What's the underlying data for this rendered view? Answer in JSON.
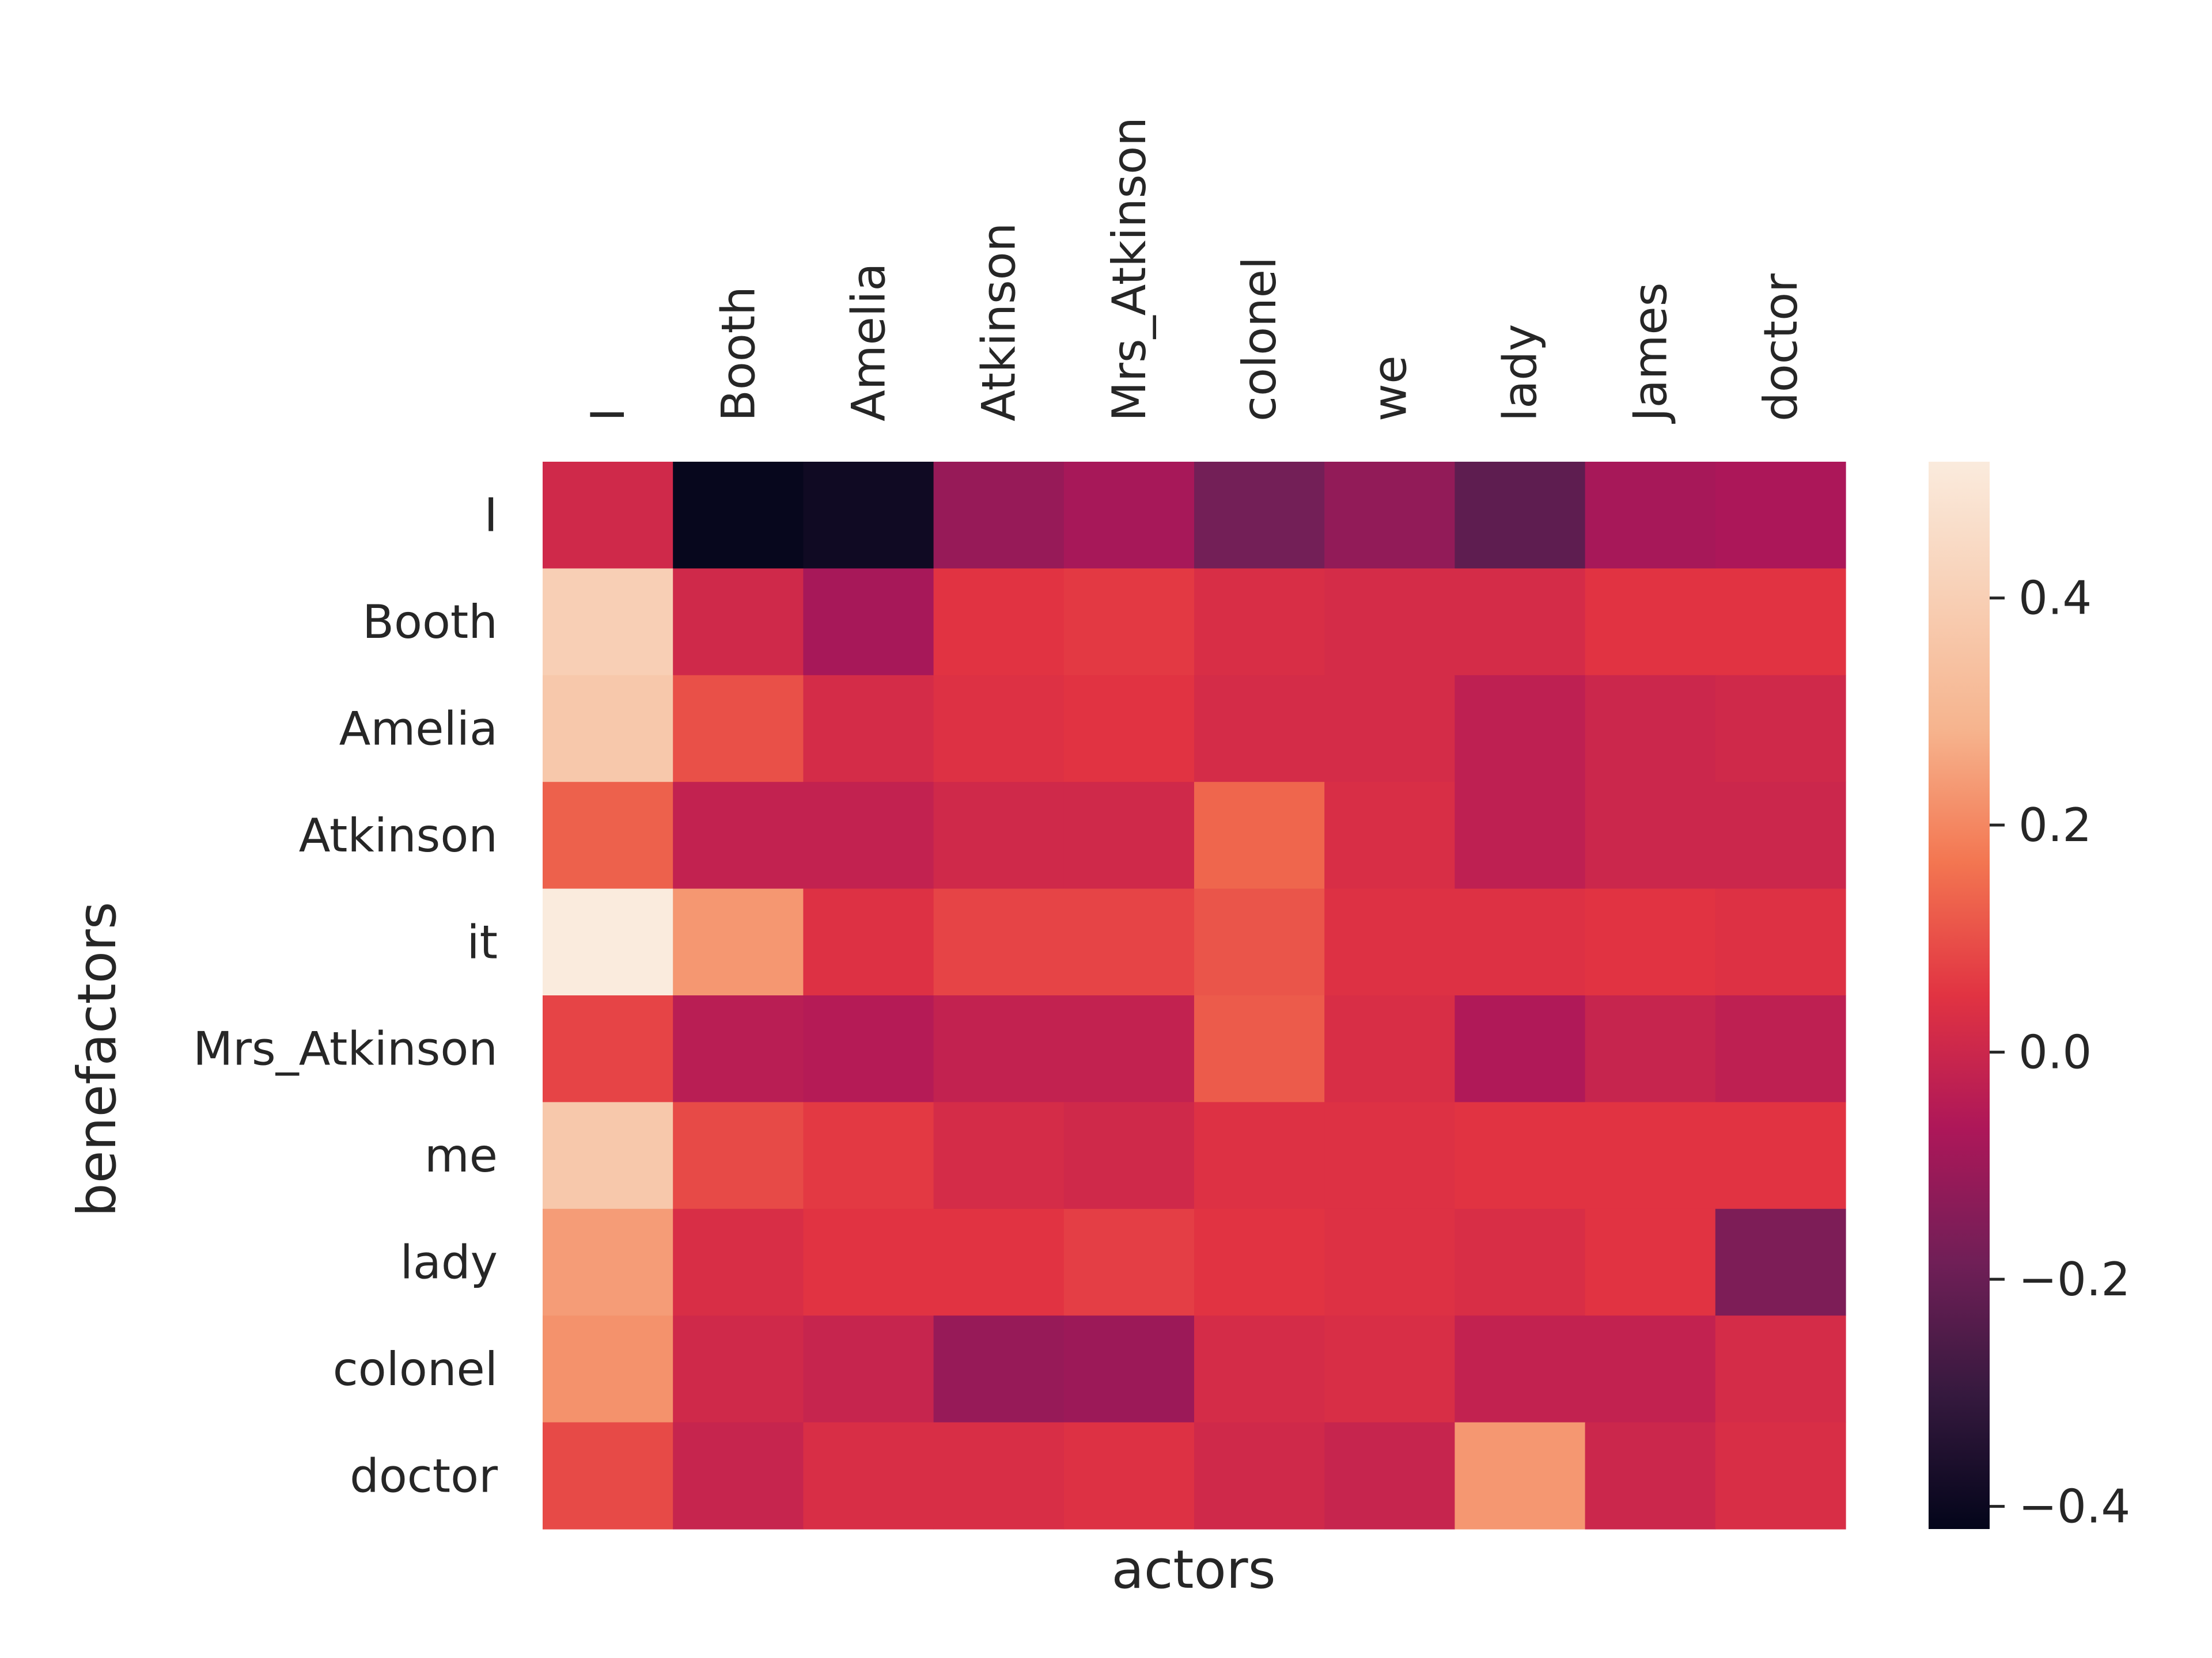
{
  "chart_data": {
    "type": "heatmap",
    "title": "",
    "xlabel": "actors",
    "ylabel": "benefactors",
    "x_categories": [
      "I",
      "Booth",
      "Amelia",
      "Atkinson",
      "Mrs_Atkinson",
      "colonel",
      "we",
      "lady",
      "James",
      "doctor"
    ],
    "y_categories": [
      "I",
      "Booth",
      "Amelia",
      "Atkinson",
      "it",
      "Mrs_Atkinson",
      "me",
      "lady",
      "colonel",
      "doctor"
    ],
    "values": [
      [
        0.01,
        -0.41,
        -0.39,
        -0.11,
        -0.08,
        -0.18,
        -0.12,
        -0.22,
        -0.08,
        -0.07
      ],
      [
        0.4,
        0.01,
        -0.08,
        0.05,
        0.06,
        0.03,
        0.02,
        0.02,
        0.05,
        0.05
      ],
      [
        0.37,
        0.1,
        0.02,
        0.04,
        0.05,
        0.02,
        0.02,
        -0.03,
        0.0,
        0.01
      ],
      [
        0.13,
        -0.02,
        -0.02,
        0.01,
        0.01,
        0.14,
        0.03,
        -0.03,
        0.0,
        0.0
      ],
      [
        0.52,
        0.23,
        0.04,
        0.08,
        0.08,
        0.11,
        0.04,
        0.04,
        0.05,
        0.04
      ],
      [
        0.08,
        -0.04,
        -0.05,
        -0.02,
        -0.02,
        0.12,
        0.03,
        -0.06,
        -0.01,
        -0.03
      ],
      [
        0.37,
        0.09,
        0.06,
        0.02,
        0.01,
        0.04,
        0.04,
        0.05,
        0.05,
        0.05
      ],
      [
        0.24,
        0.03,
        0.05,
        0.05,
        0.07,
        0.05,
        0.04,
        0.03,
        0.05,
        -0.16
      ],
      [
        0.22,
        0.01,
        -0.01,
        -0.11,
        -0.1,
        0.02,
        0.03,
        -0.02,
        -0.02,
        0.02
      ],
      [
        0.09,
        -0.01,
        0.03,
        0.03,
        0.04,
        0.01,
        -0.01,
        0.23,
        0.0,
        0.03
      ]
    ],
    "vmin": -0.42,
    "vmax": 0.52,
    "colormap": "rocket",
    "colorbar": {
      "ticks": [
        -0.4,
        -0.2,
        0.0,
        0.2,
        0.4
      ],
      "tick_labels": [
        "−0.4",
        "−0.2",
        "0.0",
        "0.2",
        "0.4"
      ]
    },
    "grid": false,
    "x_tick_position": "top",
    "x_tick_rotation": "vertical"
  }
}
